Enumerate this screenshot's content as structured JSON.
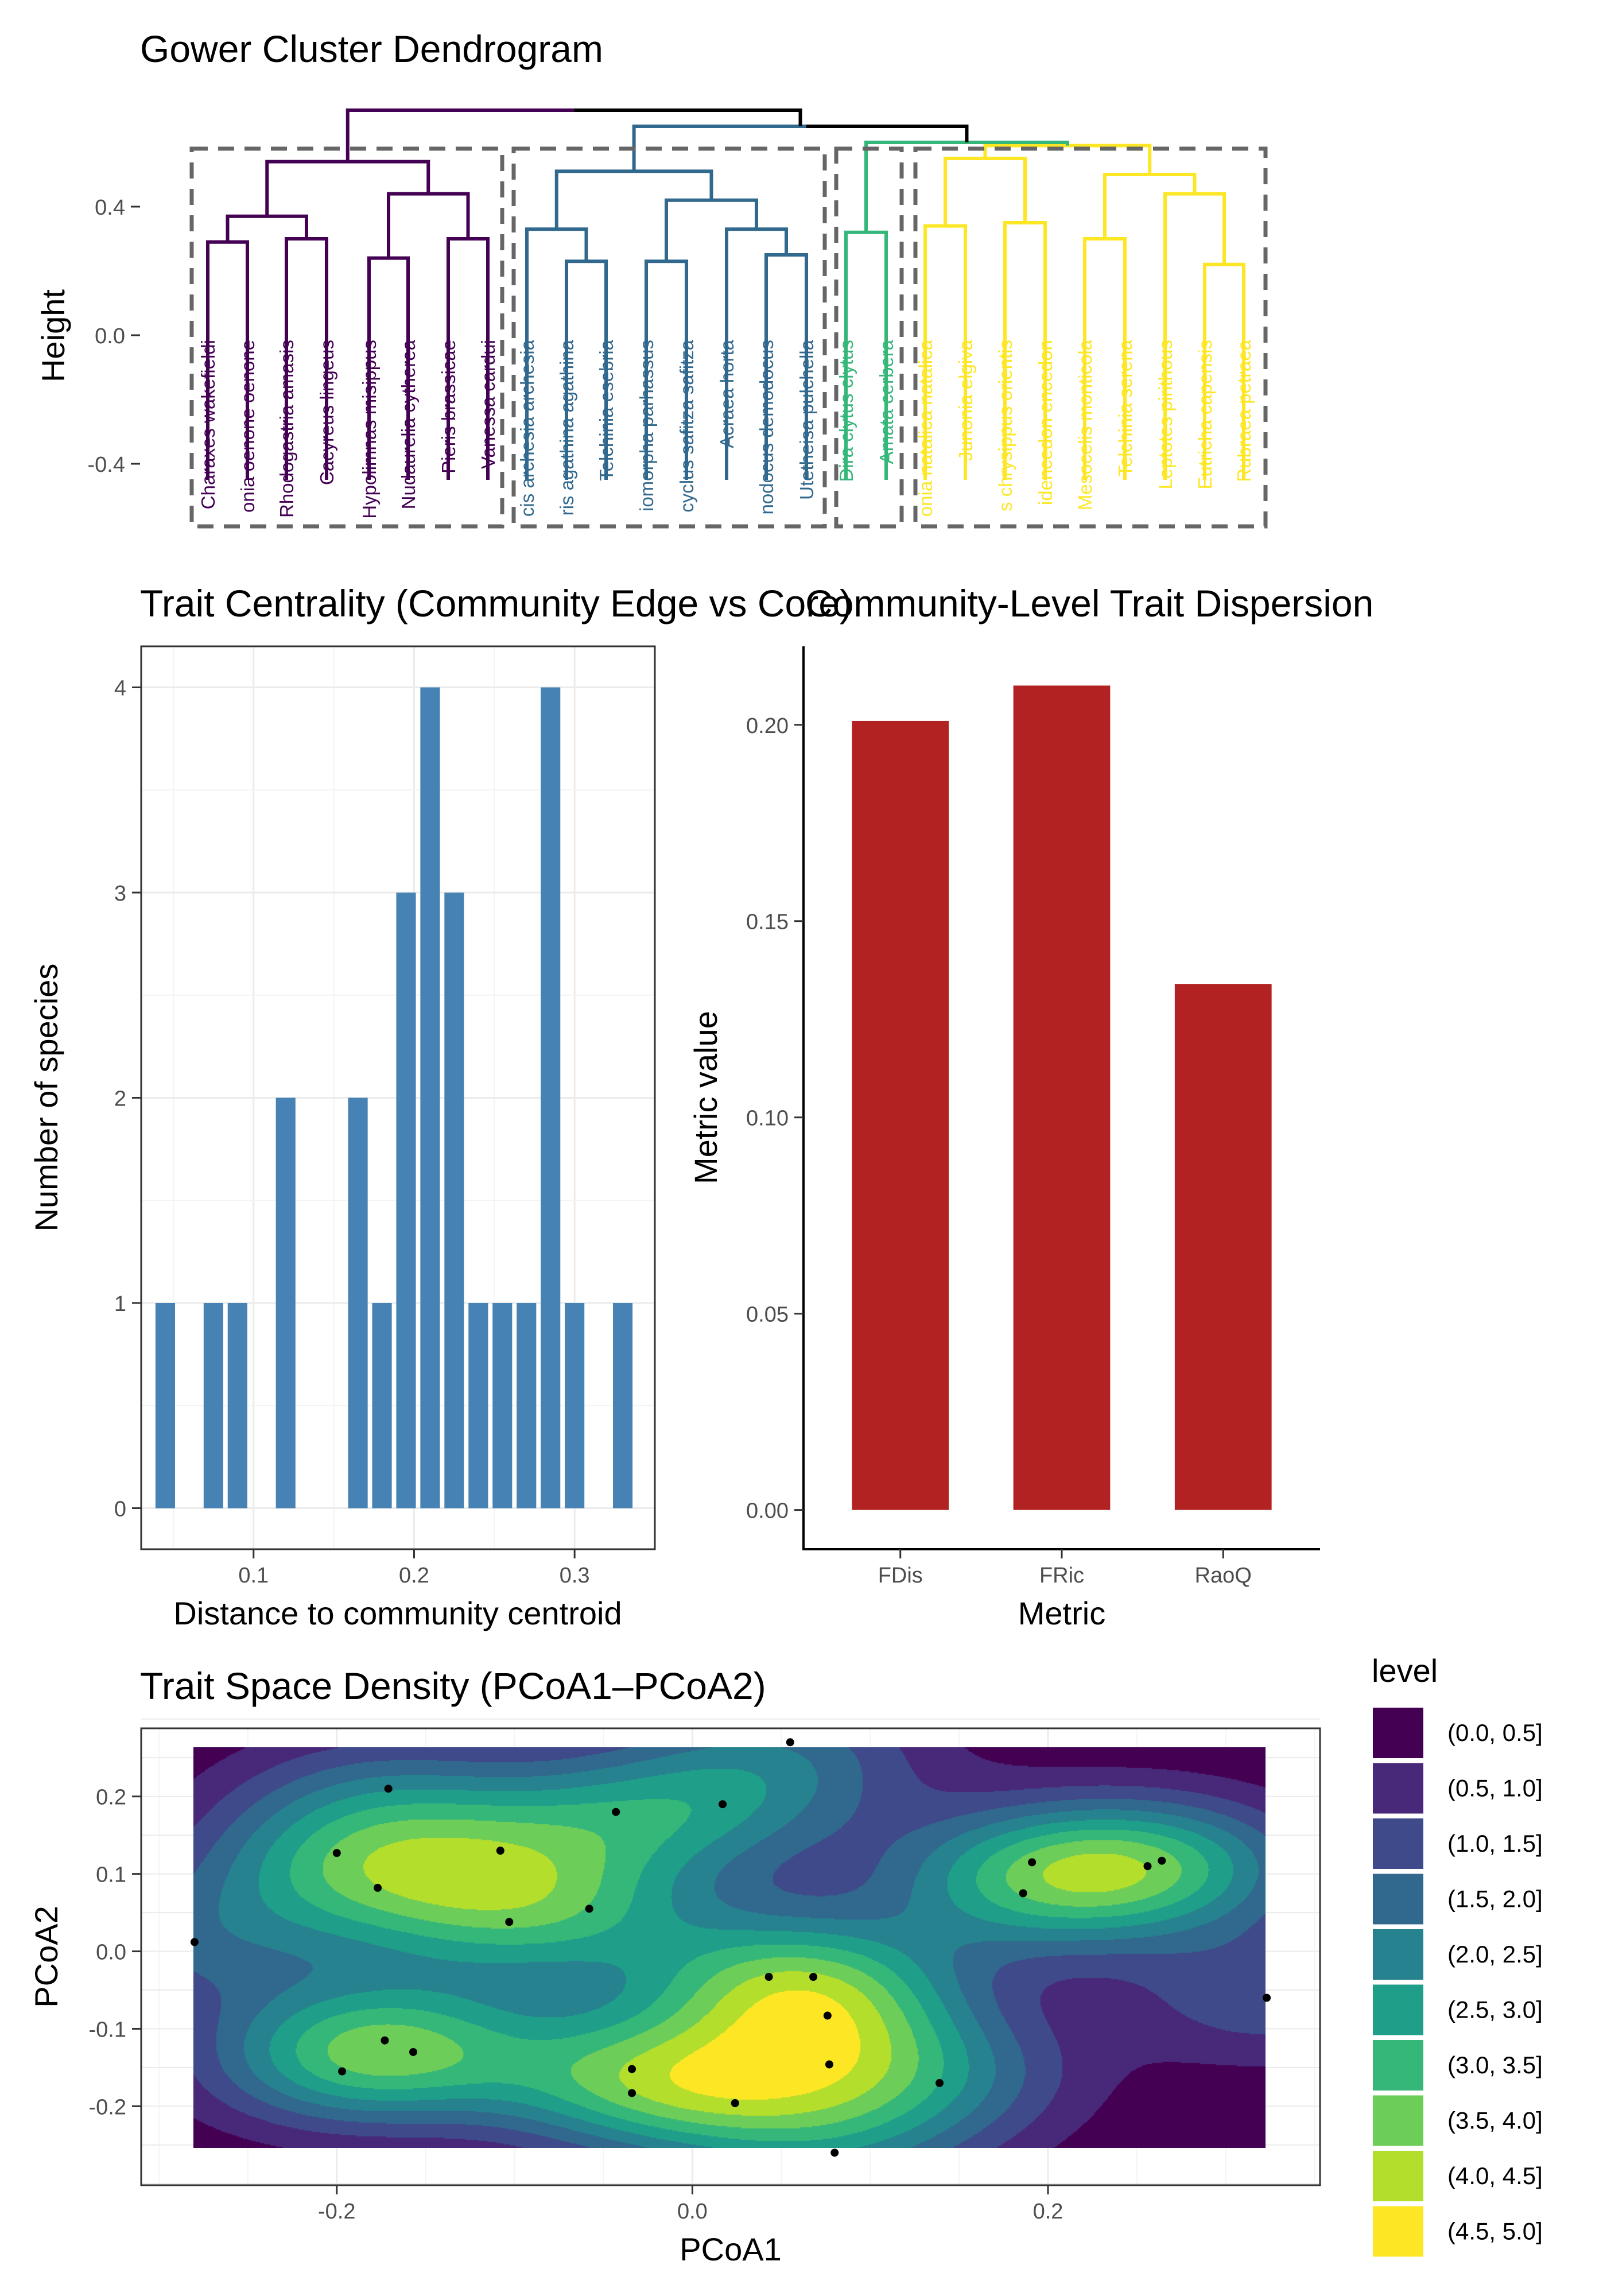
{
  "chart_data": [
    {
      "type": "dendrogram",
      "title": "Gower Cluster Dendrogram",
      "ylabel": "Height",
      "yticks": [
        0.4,
        0.0,
        -0.4
      ],
      "ytick_labels": [
        "0.4",
        "0.0",
        "-0.4"
      ],
      "leaves": [
        {
          "label": "Charaxes wakefieldi",
          "cluster": 1
        },
        {
          "label": "onia oenone oenone",
          "cluster": 1
        },
        {
          "label": "Rhodogastria amasis",
          "cluster": 1
        },
        {
          "label": "Cacyreus lingeus",
          "cluster": 1
        },
        {
          "label": "Hypolimnas misippus",
          "cluster": 1
        },
        {
          "label": "Nudaurelia cytherea",
          "cluster": 1
        },
        {
          "label": "Pieris brassicae",
          "cluster": 1
        },
        {
          "label": "Vanessa cardui",
          "cluster": 1
        },
        {
          "label": "cis archesia archesia",
          "cluster": 2
        },
        {
          "label": "ris agathina agathina",
          "cluster": 2
        },
        {
          "label": "Telchinia esebria",
          "cluster": 2
        },
        {
          "label": "iomorpha parhassus",
          "cluster": 2
        },
        {
          "label": "cyclus safitza safitza",
          "cluster": 2
        },
        {
          "label": "Acraea horta",
          "cluster": 2
        },
        {
          "label": "nodocus demodocus",
          "cluster": 2
        },
        {
          "label": "Utetheisa pulchella",
          "cluster": 2
        },
        {
          "label": "Dira clytus clytus",
          "cluster": 3
        },
        {
          "label": "Amata cerbera",
          "cluster": 3
        },
        {
          "label": "onia natalica natalica",
          "cluster": 4
        },
        {
          "label": "Junonia elgiva",
          "cluster": 4
        },
        {
          "label": "s chrysippus orientis",
          "cluster": 4
        },
        {
          "label": "idencedon encedon",
          "cluster": 4
        },
        {
          "label": "Mesocelis monticola",
          "cluster": 4
        },
        {
          "label": "Telchinia serena",
          "cluster": 4
        },
        {
          "label": "Leptotes pirithous",
          "cluster": 4
        },
        {
          "label": "Eutricha capensis",
          "cluster": 4
        },
        {
          "label": "Rubraea petraea",
          "cluster": 4
        }
      ],
      "cluster_colors": {
        "1": "#440154",
        "2": "#31688E",
        "3": "#35B779",
        "4": "#FDE725"
      }
    },
    {
      "type": "bar",
      "title": "Trait Centrality (Community Edge vs Core)",
      "xlabel": "Distance to community centroid",
      "ylabel": "Number of species",
      "x": [
        0.045,
        0.075,
        0.09,
        0.12,
        0.165,
        0.18,
        0.195,
        0.21,
        0.225,
        0.24,
        0.255,
        0.27,
        0.285,
        0.3,
        0.33
      ],
      "values": [
        1,
        1,
        1,
        2,
        2,
        1,
        3,
        4,
        3,
        1,
        1,
        1,
        4,
        1,
        1
      ],
      "xlim": [
        0.03,
        0.35
      ],
      "ylim": [
        -0.2,
        4.2
      ],
      "xticks": [
        0.1,
        0.2,
        0.3
      ],
      "xtick_labels": [
        "0.1",
        "0.2",
        "0.3"
      ],
      "yticks": [
        0,
        1,
        2,
        3,
        4
      ],
      "ytick_labels": [
        "0",
        "1",
        "2",
        "3",
        "4"
      ],
      "color": "#4682B4",
      "grid": true
    },
    {
      "type": "bar",
      "title": "Community-Level Trait Dispersion",
      "xlabel": "Metric",
      "ylabel": "Metric value",
      "categories": [
        "FDis",
        "FRic",
        "RaoQ"
      ],
      "values": [
        0.201,
        0.21,
        0.134
      ],
      "ylim": [
        -0.01,
        0.22
      ],
      "yticks": [
        0.0,
        0.05,
        0.1,
        0.15,
        0.2
      ],
      "ytick_labels": [
        "0.00",
        "0.05",
        "0.10",
        "0.15",
        "0.20"
      ],
      "color": "#B22222",
      "grid": false
    },
    {
      "type": "contour",
      "title": "Trait Space Density (PCoA1–PCoA2)",
      "xlabel": "PCoA1",
      "ylabel": "PCoA2",
      "xlim": [
        -0.31,
        0.353
      ],
      "ylim": [
        -0.302,
        0.288
      ],
      "grid_x": [
        -0.275,
        0.32
      ],
      "grid_y": [
        -0.26,
        0.27
      ],
      "xticks": [
        -0.2,
        0.0,
        0.2
      ],
      "xtick_labels": [
        "-0.2",
        "0.0",
        "0.2"
      ],
      "yticks": [
        0.2,
        0.1,
        0.0,
        -0.1,
        -0.2
      ],
      "ytick_labels": [
        "0.2",
        "0.1",
        "0.0",
        "-0.1",
        "-0.2"
      ],
      "legend_title": "level",
      "legend_position": "right",
      "levels": [
        {
          "label": "(0.0, 0.5]",
          "color": "#440154"
        },
        {
          "label": "(0.5, 1.0]",
          "color": "#482878"
        },
        {
          "label": "(1.0, 1.5]",
          "color": "#3E4A89"
        },
        {
          "label": "(1.5, 2.0]",
          "color": "#31688E"
        },
        {
          "label": "(2.0, 2.5]",
          "color": "#26828E"
        },
        {
          "label": "(2.5, 3.0]",
          "color": "#1F9E89"
        },
        {
          "label": "(3.0, 3.5]",
          "color": "#35B779"
        },
        {
          "label": "(3.5, 4.0]",
          "color": "#6DCD59"
        },
        {
          "label": "(4.0, 4.5]",
          "color": "#B4DE2C"
        },
        {
          "label": "(4.5, 5.0]",
          "color": "#FDE725"
        }
      ],
      "points": [
        [
          0.055,
          0.27
        ],
        [
          -0.171,
          0.21
        ],
        [
          -0.043,
          0.18
        ],
        [
          0.017,
          0.19
        ],
        [
          -0.2,
          0.127
        ],
        [
          -0.108,
          0.13
        ],
        [
          -0.177,
          0.082
        ],
        [
          -0.058,
          0.055
        ],
        [
          -0.103,
          0.038
        ],
        [
          0.191,
          0.115
        ],
        [
          0.264,
          0.117
        ],
        [
          0.256,
          0.11
        ],
        [
          0.186,
          0.075
        ],
        [
          -0.28,
          0.012
        ],
        [
          0.043,
          -0.033
        ],
        [
          0.068,
          -0.033
        ],
        [
          0.076,
          -0.083
        ],
        [
          0.323,
          -0.06
        ],
        [
          -0.173,
          -0.115
        ],
        [
          -0.157,
          -0.13
        ],
        [
          -0.197,
          -0.155
        ],
        [
          -0.034,
          -0.152
        ],
        [
          -0.034,
          -0.183
        ],
        [
          0.077,
          -0.146
        ],
        [
          0.139,
          -0.17
        ],
        [
          0.024,
          -0.196
        ],
        [
          0.08,
          -0.26
        ]
      ]
    }
  ]
}
